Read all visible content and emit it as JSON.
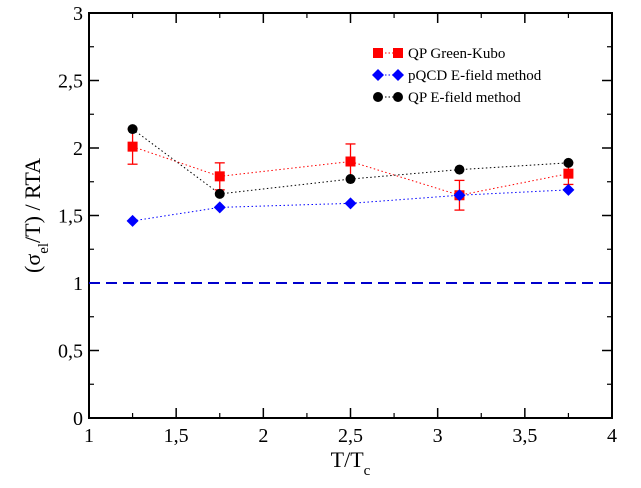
{
  "chart_data": {
    "type": "scatter",
    "xlabel": "T/T",
    "xlabel_sub": "c",
    "ylabel_prefix": "(σ",
    "ylabel_sub": "el",
    "ylabel_suffix": "/T) / RTA",
    "xlim": [
      1,
      4
    ],
    "ylim": [
      0,
      3
    ],
    "x_ticks": [
      1,
      1.5,
      2,
      2.5,
      3,
      3.5,
      4
    ],
    "x_tick_labels": [
      "1",
      "1,5",
      "2",
      "2,5",
      "3",
      "3,5",
      "4"
    ],
    "y_ticks": [
      0,
      0.5,
      1,
      1.5,
      2,
      2.5,
      3
    ],
    "y_tick_labels": [
      "0",
      "0,5",
      "1",
      "1,5",
      "2",
      "2,5",
      "3"
    ],
    "legend_position": "top-right",
    "series": [
      {
        "name": "QP Green-Kubo",
        "color": "#ff0000",
        "marker": "square",
        "x": [
          1.25,
          1.75,
          2.5,
          3.125,
          3.75
        ],
        "y": [
          2.01,
          1.79,
          1.9,
          1.65,
          1.81
        ],
        "err": [
          0.13,
          0.1,
          0.13,
          0.11,
          0.08
        ]
      },
      {
        "name": "pQCD E-field method",
        "color": "#0000ff",
        "marker": "diamond",
        "x": [
          1.25,
          1.75,
          2.5,
          3.125,
          3.75
        ],
        "y": [
          1.46,
          1.56,
          1.59,
          1.65,
          1.69
        ]
      },
      {
        "name": "QP E-field method",
        "color": "#000000",
        "marker": "circle",
        "x": [
          1.25,
          1.75,
          2.5,
          3.125,
          3.75
        ],
        "y": [
          2.14,
          1.66,
          1.77,
          1.84,
          1.89
        ]
      }
    ],
    "reference_line": {
      "y": 1.0,
      "color": "#0000cc",
      "style": "dashed"
    }
  }
}
